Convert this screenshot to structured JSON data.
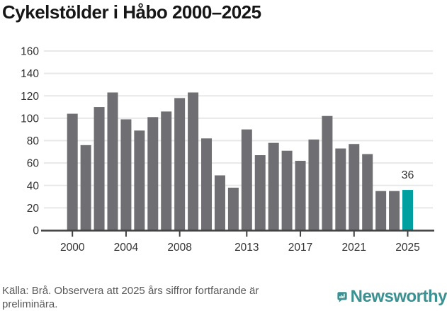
{
  "title": "Cykelstölder i Håbo 2000–2025",
  "chart_data": {
    "type": "bar",
    "title": "Cykelstölder i Håbo 2000–2025",
    "x": [
      2000,
      2001,
      2002,
      2003,
      2004,
      2005,
      2006,
      2007,
      2008,
      2009,
      2010,
      2011,
      2012,
      2013,
      2014,
      2015,
      2016,
      2017,
      2018,
      2019,
      2020,
      2021,
      2022,
      2023,
      2024,
      2025
    ],
    "values": [
      104,
      76,
      110,
      123,
      99,
      89,
      101,
      106,
      118,
      123,
      82,
      49,
      38,
      90,
      67,
      78,
      71,
      62,
      81,
      102,
      73,
      77,
      68,
      35,
      35,
      36
    ],
    "ylim": [
      0,
      160
    ],
    "yticks": [
      0,
      20,
      40,
      60,
      80,
      100,
      120,
      140,
      160
    ],
    "xticks": [
      2000,
      2004,
      2008,
      2013,
      2017,
      2021,
      2025
    ],
    "grid": true,
    "legend": "none",
    "highlight_index": 25,
    "highlight_label": "36",
    "bar_color": "#6f6e73",
    "highlight_color": "#00a0a0",
    "gridline_color": "#e8e8e8",
    "axis_color": "#414141",
    "tick_label_color": "#333333",
    "annotation_color": "#333333"
  },
  "footer": {
    "lines": [
      "Källa: Brå. Observera att 2025 års siffror fortfarande är",
      "preliminära."
    ]
  },
  "logo": {
    "wordmark": "Newsworthy",
    "brand_color": "#3a9191"
  }
}
